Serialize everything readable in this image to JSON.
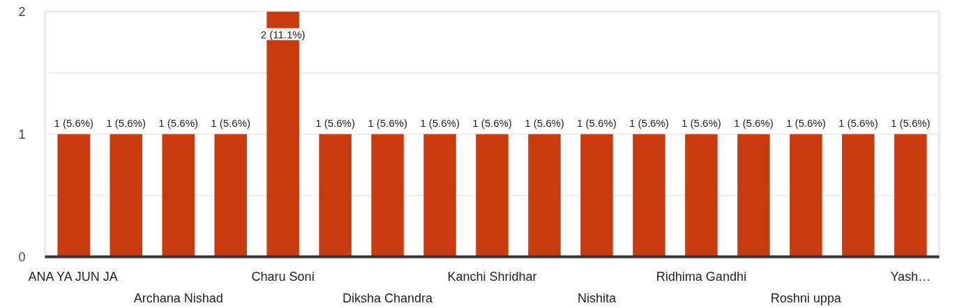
{
  "chart_data": {
    "type": "bar",
    "categories": [
      "ANA YA JUN JA",
      null,
      "Archana Nishad",
      null,
      "Charu Soni",
      null,
      "Diksha Chandra",
      null,
      "Kanchi Shridhar",
      null,
      "Nishita",
      null,
      "Ridhima Gandhi",
      null,
      "Roshni uppa",
      null,
      "Yash…"
    ],
    "values": [
      1,
      1,
      1,
      1,
      2,
      1,
      1,
      1,
      1,
      1,
      1,
      1,
      1,
      1,
      1,
      1,
      1
    ],
    "value_labels": [
      "1 (5.6%)",
      "1 (5.6%)",
      "1 (5.6%)",
      "1 (5.6%)",
      "2 (11.1%)",
      "1 (5.6%)",
      "1 (5.6%)",
      "1 (5.6%)",
      "1 (5.6%)",
      "1 (5.6%)",
      "1 (5.6%)",
      "1 (5.6%)",
      "1 (5.6%)",
      "1 (5.6%)",
      "1 (5.6%)",
      "1 (5.6%)",
      "1 (5.6%)"
    ],
    "color": "#c93b0e",
    "ylim": [
      0,
      2
    ],
    "yticks": [
      0,
      {
        "value": 0.5,
        "label": null
      },
      1,
      {
        "value": 1.5,
        "label": null
      },
      2
    ],
    "grid": "y"
  }
}
